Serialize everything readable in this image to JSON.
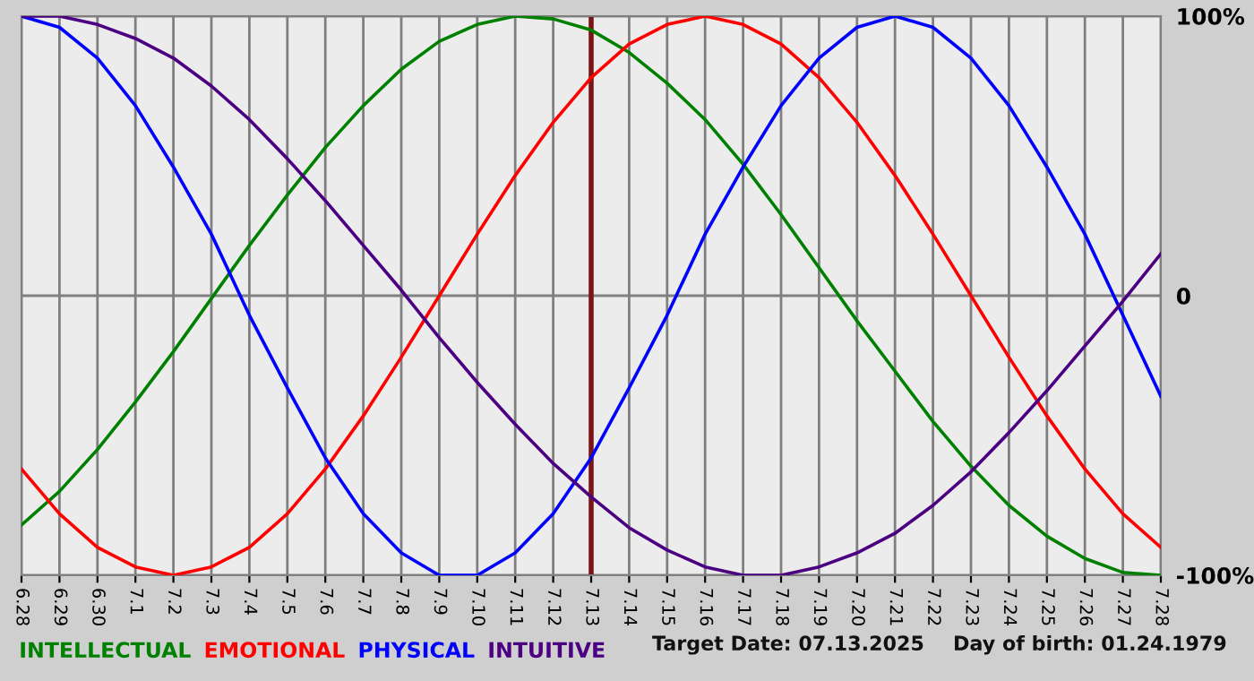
{
  "chart_data": {
    "type": "line",
    "categories": [
      "6.28",
      "6.29",
      "6.30",
      "7.1",
      "7.2",
      "7.3",
      "7.4",
      "7.5",
      "7.6",
      "7.7",
      "7.8",
      "7.9",
      "7.10",
      "7.11",
      "7.12",
      "7.13",
      "7.14",
      "7.15",
      "7.16",
      "7.17",
      "7.18",
      "7.19",
      "7.20",
      "7.21",
      "7.22",
      "7.23",
      "7.24",
      "7.25",
      "7.26",
      "7.27",
      "7.28"
    ],
    "series": [
      {
        "name": "INTELLECTUAL",
        "color": "#008000",
        "values": [
          -82,
          -70,
          -55,
          -38,
          -20,
          -1,
          18,
          36,
          53,
          68,
          81,
          91,
          97,
          100,
          99,
          95,
          87,
          76,
          63,
          47,
          29,
          10,
          -9,
          -27,
          -45,
          -61,
          -75,
          -86,
          -94,
          -99,
          -100
        ]
      },
      {
        "name": "EMOTIONAL",
        "color": "#ff0000",
        "values": [
          -62,
          -78,
          -90,
          -97,
          -100,
          -97,
          -90,
          -78,
          -62,
          -43,
          -22,
          0,
          22,
          43,
          62,
          78,
          90,
          97,
          100,
          97,
          90,
          78,
          62,
          43,
          22,
          0,
          -22,
          -43,
          -62,
          -78,
          -90
        ]
      },
      {
        "name": "PHYSICAL",
        "color": "#0000ff",
        "values": [
          100,
          96,
          85,
          68,
          46,
          22,
          -7,
          -33,
          -58,
          -78,
          -92,
          -100,
          -100,
          -92,
          -78,
          -58,
          -33,
          -7,
          22,
          46,
          68,
          85,
          96,
          100,
          96,
          85,
          68,
          46,
          22,
          -7,
          -36
        ]
      },
      {
        "name": "INTUITIVE",
        "color": "#4b0082",
        "values": [
          100,
          100,
          97,
          92,
          85,
          75,
          63,
          49,
          34,
          18,
          2,
          -15,
          -31,
          -46,
          -60,
          -72,
          -83,
          -91,
          -97,
          -100,
          -100,
          -97,
          -92,
          -85,
          -75,
          -63,
          -49,
          -34,
          -18,
          -2,
          15
        ]
      }
    ],
    "ylim": [
      -100,
      100
    ],
    "yticks": [
      {
        "value": 100,
        "label": "100%"
      },
      0,
      {
        "value": -100,
        "label": "-100%"
      }
    ],
    "grid": true,
    "legend": "bottom left",
    "marker": "none",
    "line_style": "solid",
    "ref_lines": [
      {
        "axis": "x",
        "value": "7.13",
        "color": "#7b1515"
      }
    ],
    "annotations": [
      "Target Date: 07.13.2025",
      "Day of birth: 01.24.1979"
    ]
  }
}
